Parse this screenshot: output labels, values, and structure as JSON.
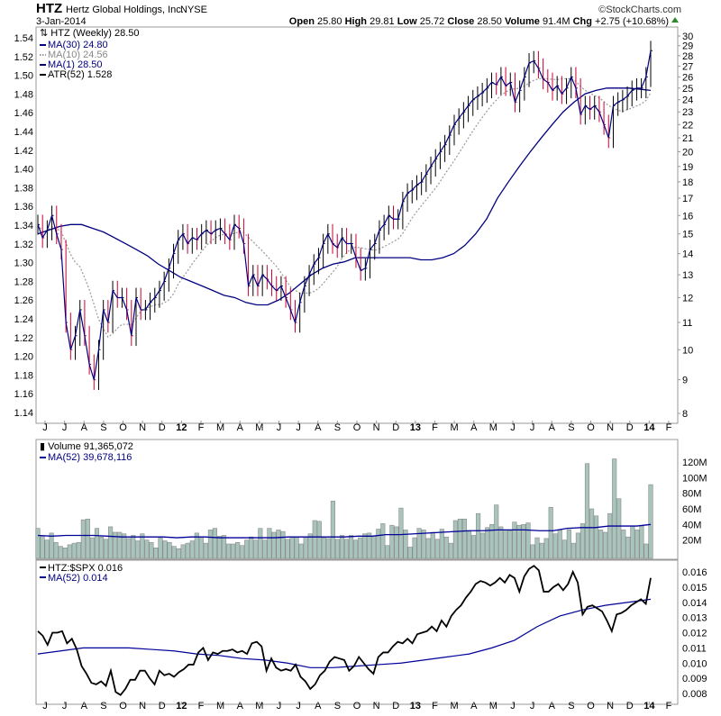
{
  "header": {
    "symbol": "HTZ",
    "company": "Hertz Global Holdings, Inc.",
    "exchange": "NYSE",
    "date": "3-Jan-2014",
    "brand": "©StockCharts.com",
    "open_label": "Open",
    "open": "25.80",
    "high_label": "High",
    "high": "29.81",
    "low_label": "Low",
    "low": "25.72",
    "close_label": "Close",
    "close": "28.50",
    "volume_label": "Volume",
    "volume": "91.4M",
    "chg_label": "Chg",
    "chg": "+2.75 (+10.68%)"
  },
  "colors": {
    "up": "#000000",
    "down": "#cc0033",
    "ma30": "#000080",
    "ma10": "#999999",
    "volume": "#a8c4bc",
    "volume_edge": "#8a8a8a",
    "ma_blue": "#000099"
  },
  "chart_data": [
    {
      "type": "line",
      "title": "HTZ (Weekly) 28.50",
      "legend": [
        "HTZ (Weekly) 28.50",
        "MA(30) 24.80",
        "MA(10) 24.56",
        "MA(1) 28.50",
        "ATR(52) 1.528"
      ],
      "scale": "log",
      "ylim": [
        8,
        30
      ],
      "right_ticks": [
        8,
        9,
        10,
        11,
        12,
        13,
        14,
        15,
        16,
        17,
        18,
        19,
        20,
        21,
        22,
        23,
        24,
        25,
        26,
        27,
        28,
        29,
        30
      ],
      "left_ticks": [
        "1.54",
        "1.52",
        "1.50",
        "1.48",
        "1.46",
        "1.44",
        "1.42",
        "1.40",
        "1.38",
        "1.36",
        "1.34",
        "1.32",
        "1.30",
        "1.28",
        "1.26",
        "1.24",
        "1.22",
        "1.20",
        "1.18",
        "1.16",
        "1.14"
      ],
      "x_range": [
        "Jun 2011",
        "Jan 2014"
      ],
      "closes": [
        15.5,
        14.8,
        15.2,
        16,
        15,
        14.2,
        11,
        10,
        10.5,
        11.5,
        10.5,
        9.5,
        9,
        10,
        11.5,
        11,
        12.3,
        12,
        12,
        11.5,
        10.5,
        12,
        11.5,
        11.5,
        11.8,
        12,
        12.3,
        12.7,
        13.3,
        14,
        14.7,
        15,
        14.5,
        14.8,
        14.7,
        15,
        15.2,
        15,
        15.2,
        15.3,
        15,
        14.7,
        15.5,
        15.3,
        14.5,
        12.5,
        13,
        12.5,
        13,
        12.8,
        12.5,
        12.3,
        12.5,
        12,
        11.5,
        11,
        11.8,
        12.5,
        13,
        13.5,
        13.8,
        14.5,
        15,
        14.5,
        14.3,
        14.8,
        14.5,
        14.5,
        13.8,
        13.2,
        13.3,
        14.2,
        14.5,
        15.2,
        15.5,
        16,
        15.8,
        15.8,
        16.8,
        17.3,
        17.5,
        17.8,
        18,
        18.5,
        19,
        19.5,
        20,
        20.5,
        21.2,
        22,
        22.5,
        23,
        23.5,
        24,
        24.3,
        24.6,
        25,
        25.5,
        25.3,
        26,
        25.2,
        25.5,
        23.8,
        24.8,
        26,
        27.3,
        27.5,
        26.8,
        25.8,
        25.5,
        24.8,
        25.2,
        24.5,
        25,
        26,
        25,
        22.8,
        23.5,
        23.2,
        23.5,
        23,
        22,
        21,
        23.5,
        23.8,
        24,
        24.3,
        24.8,
        25,
        25,
        26,
        28.5
      ],
      "ma30": [
        15,
        15.2,
        15.4,
        15.5,
        15.5,
        15.3,
        15.1,
        14.8,
        14.5,
        14.2,
        13.9,
        13.5,
        13.2,
        12.9,
        12.7,
        12.5,
        12.3,
        12.1,
        12,
        11.8,
        11.7,
        11.7,
        11.9,
        12.2,
        12.6,
        13,
        13.3,
        13.5,
        13.6,
        13.8,
        13.8,
        13.8,
        13.8,
        13.8,
        13.8,
        13.7,
        13.7,
        13.8,
        14,
        14.4,
        15,
        15.8,
        17,
        18,
        19,
        20,
        21,
        22,
        23,
        23.8,
        24.5,
        24.8,
        25,
        25,
        25,
        24.9,
        24.8
      ]
    },
    {
      "type": "bar",
      "title": "Volume 91,365,072",
      "legend": [
        "Volume 91,365,072",
        "MA(52) 39,678,116"
      ],
      "ylim": [
        0,
        130
      ],
      "unit": "M",
      "ticks": [
        "20M",
        "40M",
        "60M",
        "80M",
        "100M",
        "120M"
      ],
      "values": [
        35,
        25,
        20,
        29,
        17,
        12,
        10,
        14,
        16,
        17,
        46,
        47,
        23,
        35,
        24,
        21,
        37,
        30,
        30,
        28,
        22,
        26,
        19,
        28,
        20,
        17,
        10,
        23,
        19,
        17,
        12,
        9,
        14,
        16,
        19,
        29,
        24,
        16,
        33,
        35,
        25,
        26,
        15,
        15,
        17,
        13,
        20,
        24,
        20,
        35,
        20,
        35,
        30,
        33,
        31,
        21,
        24,
        24,
        15,
        24,
        28,
        45,
        44,
        23,
        22,
        70,
        21,
        26,
        21,
        26,
        20,
        23,
        28,
        29,
        25,
        34,
        41,
        13,
        39,
        37,
        61,
        33,
        11,
        23,
        35,
        33,
        22,
        30,
        21,
        34,
        24,
        16,
        45,
        47,
        47,
        31,
        26,
        54,
        29,
        36,
        40,
        65,
        37,
        33,
        32,
        43,
        39,
        40,
        42,
        14,
        23,
        16,
        22,
        62,
        28,
        33,
        20,
        33,
        16,
        29,
        41,
        118,
        60,
        51,
        33,
        30,
        54,
        124,
        73,
        33,
        24,
        38,
        33,
        38,
        15,
        91
      ],
      "ma52": [
        26,
        25,
        26,
        26,
        26,
        25,
        24,
        24,
        24,
        24,
        23,
        24,
        24,
        23,
        23,
        23,
        23,
        23,
        24,
        24,
        24,
        24,
        24,
        25,
        25,
        27,
        27,
        28,
        29,
        30,
        31,
        32,
        32,
        33,
        33,
        33,
        32,
        32,
        35,
        36,
        36,
        38,
        38,
        38,
        40
      ]
    },
    {
      "type": "line",
      "title": "HTZ:$SPX 0.016",
      "legend": [
        "HTZ:$SPX 0.016",
        "MA(52) 0.014"
      ],
      "ylim": [
        0.0077,
        0.0167
      ],
      "ticks": [
        "0.008",
        "0.009",
        "0.010",
        "0.011",
        "0.012",
        "0.013",
        "0.014",
        "0.015",
        "0.016"
      ],
      "values": [
        0.0121,
        0.0118,
        0.0112,
        0.012,
        0.012,
        0.0121,
        0.0113,
        0.0116,
        0.0109,
        0.0098,
        0.0093,
        0.0087,
        0.0086,
        0.0088,
        0.0085,
        0.0095,
        0.0081,
        0.0079,
        0.0083,
        0.0089,
        0.0089,
        0.0095,
        0.0095,
        0.009,
        0.0086,
        0.0095,
        0.0092,
        0.0093,
        0.0091,
        0.0094,
        0.0096,
        0.0099,
        0.0099,
        0.0107,
        0.011,
        0.0102,
        0.0107,
        0.0106,
        0.0108,
        0.0108,
        0.0109,
        0.0107,
        0.0108,
        0.0106,
        0.0113,
        0.0114,
        0.0111,
        0.0095,
        0.0103,
        0.0097,
        0.0095,
        0.0096,
        0.0095,
        0.0099,
        0.0091,
        0.0088,
        0.0083,
        0.0086,
        0.0092,
        0.0095,
        0.0101,
        0.0104,
        0.0103,
        0.0102,
        0.0095,
        0.0098,
        0.0104,
        0.01,
        0.0096,
        0.0093,
        0.0104,
        0.0107,
        0.0107,
        0.0111,
        0.0114,
        0.0113,
        0.0116,
        0.0113,
        0.0119,
        0.012,
        0.0121,
        0.0124,
        0.0121,
        0.0128,
        0.0124,
        0.0131,
        0.0135,
        0.0138,
        0.0143,
        0.0147,
        0.0152,
        0.0154,
        0.0153,
        0.0151,
        0.0153,
        0.0156,
        0.0153,
        0.0158,
        0.0156,
        0.0147,
        0.0157,
        0.0162,
        0.0164,
        0.0161,
        0.0147,
        0.0147,
        0.015,
        0.0152,
        0.0148,
        0.0152,
        0.016,
        0.0153,
        0.0132,
        0.0137,
        0.0138,
        0.0136,
        0.0134,
        0.0128,
        0.0121,
        0.0132,
        0.0133,
        0.0135,
        0.0138,
        0.014,
        0.0142,
        0.0139,
        0.0156
      ],
      "ma52": [
        0.0106,
        0.0108,
        0.011,
        0.011,
        0.011,
        0.0109,
        0.0108,
        0.0106,
        0.0105,
        0.0103,
        0.0102,
        0.01,
        0.0097,
        0.0097,
        0.0098,
        0.0099,
        0.01,
        0.0102,
        0.0104,
        0.0106,
        0.011,
        0.0115,
        0.0124,
        0.0131,
        0.0135,
        0.0138,
        0.014,
        0.0142
      ]
    }
  ],
  "months": [
    {
      "label": "J"
    },
    {
      "label": "J"
    },
    {
      "label": "A"
    },
    {
      "label": "S"
    },
    {
      "label": "O"
    },
    {
      "label": "N"
    },
    {
      "label": "D"
    },
    {
      "label": "12",
      "bold": true
    },
    {
      "label": "F"
    },
    {
      "label": "M"
    },
    {
      "label": "A"
    },
    {
      "label": "M"
    },
    {
      "label": "J"
    },
    {
      "label": "J"
    },
    {
      "label": "A"
    },
    {
      "label": "S"
    },
    {
      "label": "O"
    },
    {
      "label": "N"
    },
    {
      "label": "D"
    },
    {
      "label": "13",
      "bold": true
    },
    {
      "label": "F"
    },
    {
      "label": "M"
    },
    {
      "label": "A"
    },
    {
      "label": "M"
    },
    {
      "label": "J"
    },
    {
      "label": "J"
    },
    {
      "label": "A"
    },
    {
      "label": "S"
    },
    {
      "label": "O"
    },
    {
      "label": "N"
    },
    {
      "label": "D"
    },
    {
      "label": "14",
      "bold": true
    },
    {
      "label": "F"
    }
  ]
}
